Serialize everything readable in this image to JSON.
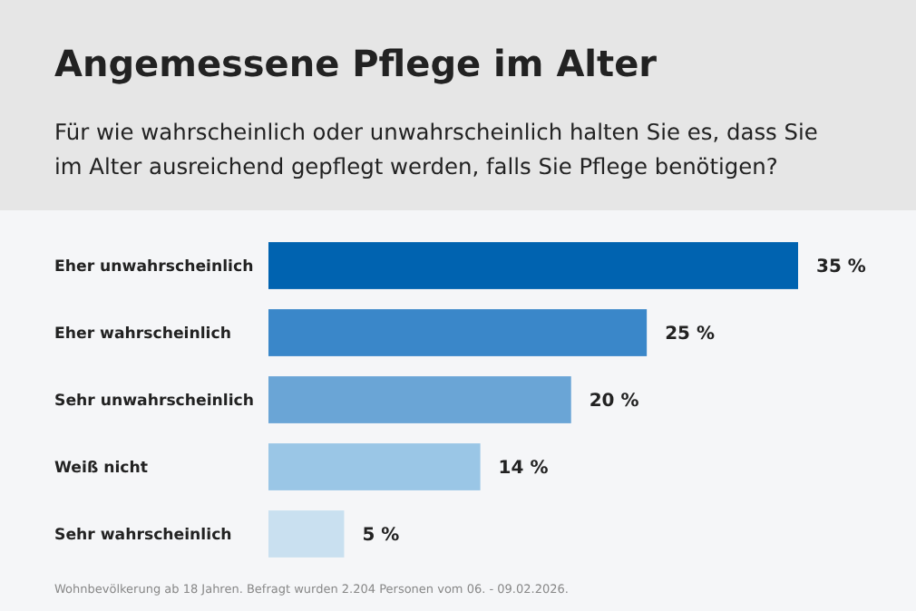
{
  "chart_data": {
    "type": "bar",
    "orientation": "horizontal",
    "title": "Angemessene Pflege im Alter",
    "subtitle": "Für wie wahrscheinlich oder unwahrscheinlich halten Sie es, dass Sie im Alter ausreichend gepflegt werden, falls Sie Pflege benötigen?",
    "categories": [
      "Eher unwahrscheinlich",
      "Eher wahrscheinlich",
      "Sehr unwahrscheinlich",
      "Weiß nicht",
      "Sehr wahrscheinlich"
    ],
    "values": [
      35,
      25,
      20,
      14,
      5
    ],
    "colors": [
      "#0063b0",
      "#3a87c9",
      "#6aa5d6",
      "#9ac6e6",
      "#c9e0f0"
    ],
    "value_labels": [
      "35 %",
      "25 %",
      "20 %",
      "14 %",
      "5 %"
    ],
    "annotations": [
      "Wohnbevölkerung ab 18 Jahren. Befragt wurden 2.204 Personen vom 06. - 09.02.2026."
    ]
  }
}
